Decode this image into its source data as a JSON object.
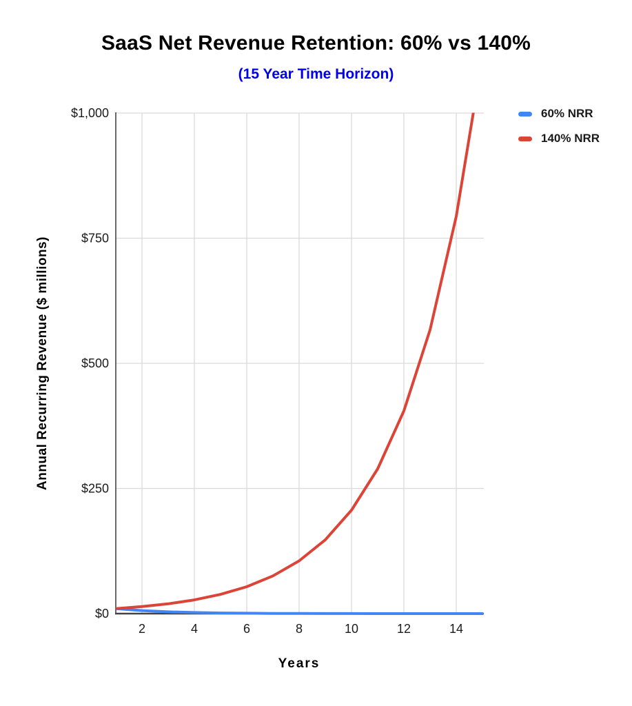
{
  "chart_data": {
    "type": "line",
    "title": "SaaS Net Revenue Retention: 60% vs 140%",
    "subtitle": "(15 Year Time Horizon)",
    "subtitle_color": "#0000ee",
    "xlabel": "Years",
    "ylabel": "Annual Recurring Revenue ($ millions)",
    "x": [
      1,
      2,
      3,
      4,
      5,
      6,
      7,
      8,
      9,
      10,
      11,
      12,
      13,
      14,
      15
    ],
    "series": [
      {
        "name": "60% NRR",
        "color": "#4285f4",
        "values": [
          10,
          6,
          3.6,
          2.16,
          1.3,
          0.78,
          0.47,
          0.28,
          0.17,
          0.1,
          0.06,
          0.04,
          0.02,
          0.01,
          0.01
        ]
      },
      {
        "name": "140% NRR",
        "color": "#db4437",
        "values": [
          10,
          14,
          19.6,
          27.44,
          38.42,
          53.78,
          75.3,
          105.41,
          147.58,
          206.61,
          289.26,
          404.96,
          566.94,
          793.71,
          1111.2
        ]
      }
    ],
    "xlim": [
      1,
      15
    ],
    "ylim": [
      0,
      1000
    ],
    "x_ticks": {
      "values": [
        2,
        4,
        6,
        8,
        10,
        12,
        14
      ],
      "labels": [
        "2",
        "4",
        "6",
        "8",
        "10",
        "12",
        "14"
      ]
    },
    "y_ticks": {
      "values": [
        0,
        250,
        500,
        750,
        1000
      ],
      "labels": [
        "$0",
        "$250",
        "$500",
        "$750",
        "$1,000"
      ]
    },
    "grid": true,
    "legend_position": "top-right"
  }
}
